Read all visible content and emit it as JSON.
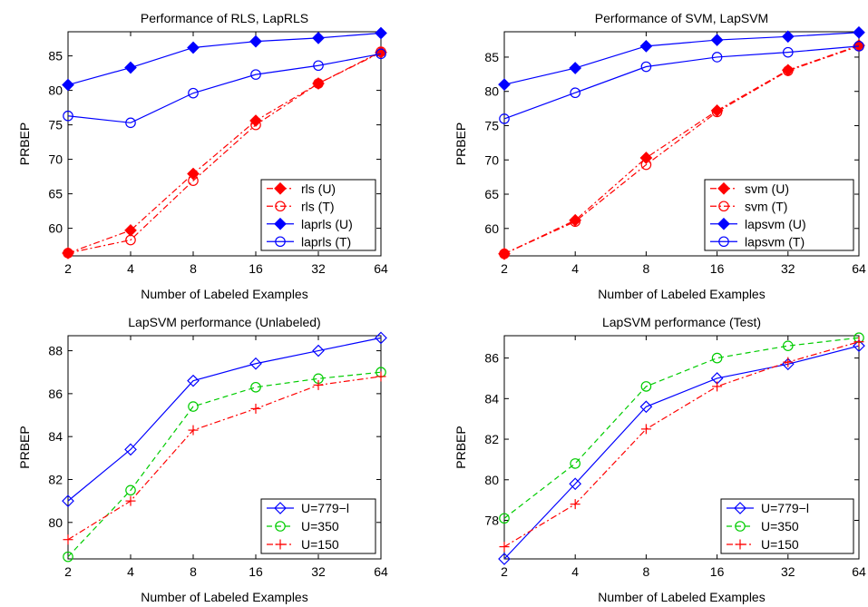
{
  "chart_data": [
    {
      "type": "line",
      "title": "Performance of RLS, LapRLS",
      "xlabel": "Number of Labeled Examples",
      "ylabel": "PRBEP",
      "x_scale": "log2",
      "categories": [
        "2",
        "4",
        "8",
        "16",
        "32",
        "64"
      ],
      "ylim": [
        56,
        88.5
      ],
      "yticks": [
        60,
        65,
        70,
        75,
        80,
        85
      ],
      "legend_position": "bottom-right",
      "series": [
        {
          "name": "rls (U)",
          "values": [
            56.4,
            59.7,
            67.9,
            75.6,
            81.0,
            85.5
          ],
          "color": "#ff0000",
          "marker": "diamond-filled",
          "linestyle": "dashdot"
        },
        {
          "name": "rls (T)",
          "values": [
            56.4,
            58.3,
            66.9,
            75.0,
            81.0,
            85.6
          ],
          "color": "#ff0000",
          "marker": "circle-open",
          "linestyle": "dashdot"
        },
        {
          "name": "laprls (U)",
          "values": [
            80.8,
            83.3,
            86.2,
            87.1,
            87.6,
            88.3
          ],
          "color": "#0000ff",
          "marker": "diamond-filled",
          "linestyle": "solid"
        },
        {
          "name": "laprls (T)",
          "values": [
            76.3,
            75.3,
            79.6,
            82.3,
            83.6,
            85.3
          ],
          "color": "#0000ff",
          "marker": "circle-open",
          "linestyle": "solid"
        }
      ]
    },
    {
      "type": "line",
      "title": "Performance of SVM, LapSVM",
      "xlabel": "Number of Labeled Examples",
      "ylabel": "PRBEP",
      "x_scale": "log2",
      "categories": [
        "2",
        "4",
        "8",
        "16",
        "32",
        "64"
      ],
      "ylim": [
        56,
        88.7
      ],
      "yticks": [
        60,
        65,
        70,
        75,
        80,
        85
      ],
      "legend_position": "bottom-right",
      "series": [
        {
          "name": "svm (U)",
          "values": [
            56.3,
            61.2,
            70.3,
            77.2,
            83.1,
            86.7
          ],
          "color": "#ff0000",
          "marker": "diamond-filled",
          "linestyle": "dashdot"
        },
        {
          "name": "svm (T)",
          "values": [
            56.3,
            61.0,
            69.3,
            77.0,
            83.0,
            86.6
          ],
          "color": "#ff0000",
          "marker": "circle-open",
          "linestyle": "dashdot"
        },
        {
          "name": "lapsvm (U)",
          "values": [
            81.0,
            83.4,
            86.6,
            87.5,
            88.0,
            88.6
          ],
          "color": "#0000ff",
          "marker": "diamond-filled",
          "linestyle": "solid"
        },
        {
          "name": "lapsvm (T)",
          "values": [
            76.0,
            79.8,
            83.6,
            85.0,
            85.7,
            86.6
          ],
          "color": "#0000ff",
          "marker": "circle-open",
          "linestyle": "solid"
        }
      ]
    },
    {
      "type": "line",
      "title": "LapSVM performance (Unlabeled)",
      "xlabel": "Number of Labeled Examples",
      "ylabel": "PRBEP",
      "x_scale": "log2",
      "categories": [
        "2",
        "4",
        "8",
        "16",
        "32",
        "64"
      ],
      "ylim": [
        78.3,
        88.7
      ],
      "yticks": [
        80,
        82,
        84,
        86,
        88
      ],
      "legend_position": "bottom-right",
      "series": [
        {
          "name": "U=779−l",
          "values": [
            81.0,
            83.4,
            86.6,
            87.4,
            88.0,
            88.6
          ],
          "color": "#0000ff",
          "marker": "diamond-open",
          "linestyle": "solid"
        },
        {
          "name": "U=350",
          "values": [
            78.4,
            81.5,
            85.4,
            86.3,
            86.7,
            87.0
          ],
          "color": "#00cc00",
          "marker": "circle-open",
          "linestyle": "dashed"
        },
        {
          "name": "U=150",
          "values": [
            79.2,
            81.0,
            84.3,
            85.3,
            86.4,
            86.8
          ],
          "color": "#ff0000",
          "marker": "plus",
          "linestyle": "dashdot"
        }
      ]
    },
    {
      "type": "line",
      "title": "LapSVM performance (Test)",
      "xlabel": "Number of Labeled Examples",
      "ylabel": "PRBEP",
      "x_scale": "log2",
      "categories": [
        "2",
        "4",
        "8",
        "16",
        "32",
        "64"
      ],
      "ylim": [
        76.1,
        87.1
      ],
      "yticks": [
        78,
        80,
        82,
        84,
        86
      ],
      "legend_position": "bottom-right",
      "series": [
        {
          "name": "U=779−l",
          "values": [
            76.1,
            79.8,
            83.6,
            85.0,
            85.7,
            86.6
          ],
          "color": "#0000ff",
          "marker": "diamond-open",
          "linestyle": "solid"
        },
        {
          "name": "U=350",
          "values": [
            78.1,
            80.8,
            84.6,
            86.0,
            86.6,
            87.0
          ],
          "color": "#00cc00",
          "marker": "circle-open",
          "linestyle": "dashed"
        },
        {
          "name": "U=150",
          "values": [
            76.7,
            78.8,
            82.5,
            84.6,
            85.8,
            86.8
          ],
          "color": "#ff0000",
          "marker": "plus",
          "linestyle": "dashdot"
        }
      ]
    }
  ]
}
